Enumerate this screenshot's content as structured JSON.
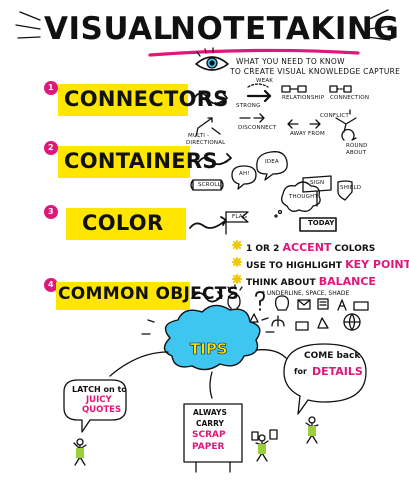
{
  "header": {
    "title_word1": "VISUAL",
    "title_word2": "NOTETAKING",
    "subtitle_line1": "WHAT YOU NEED TO KNOW",
    "subtitle_line2": "TO CREATE VISUAL KNOWLEDGE CAPTURE"
  },
  "sections": [
    {
      "number": "1",
      "title": "CONNECTORS"
    },
    {
      "number": "2",
      "title": "CONTAINERS"
    },
    {
      "number": "3",
      "title": "COLOR"
    },
    {
      "number": "4",
      "title": "COMMON OBJECTS"
    }
  ],
  "connectors": {
    "weak": "WEAK",
    "strong": "STRONG",
    "relationship": "RELATIONSHIP",
    "connection": "CONNECTION",
    "multi_line1": "MULTI -",
    "multi_line2": "DIRECTIONAL",
    "disconnect": "DISCONNECT",
    "away_from": "AWAY FROM",
    "conflict": "CONFLICT",
    "round_line1": "ROUND",
    "round_line2": "ABOUT"
  },
  "containers": {
    "idea": "IDEA",
    "ah": "AH!",
    "thought": "THOUGHT",
    "scroll": "SCROLL",
    "sign": "SIGN",
    "shield": "SHIELD",
    "flag": "FLAG",
    "today": "TODAY"
  },
  "color_tips": {
    "tip1_pre": "1 OR 2",
    "tip1_accent": "ACCENT",
    "tip1_post": "COLORS",
    "tip2_pre": "USE TO HIGHLIGHT",
    "tip2_accent": "KEY POINTS",
    "tip3_pre": "THINK ABOUT",
    "tip3_accent": "BALANCE",
    "tip4": "* UNDERLINE, SPACE, SHADE"
  },
  "tips": {
    "label": "TIPS",
    "latch_line1": "LATCH on to",
    "latch_line2": "JUICY",
    "latch_line3": "QUOTES",
    "carry_line1": "ALWAYS",
    "carry_line2": "CARRY",
    "carry_line3": "SCRAP",
    "carry_line4": "PAPER",
    "come_line1": "COME back",
    "come_line2": "for",
    "come_line3": "DETAILS"
  },
  "colors": {
    "highlight": "#ffe600",
    "accent_pink": "#e0177b",
    "tips_cloud": "#3ec6f0",
    "ink": "#111111"
  }
}
